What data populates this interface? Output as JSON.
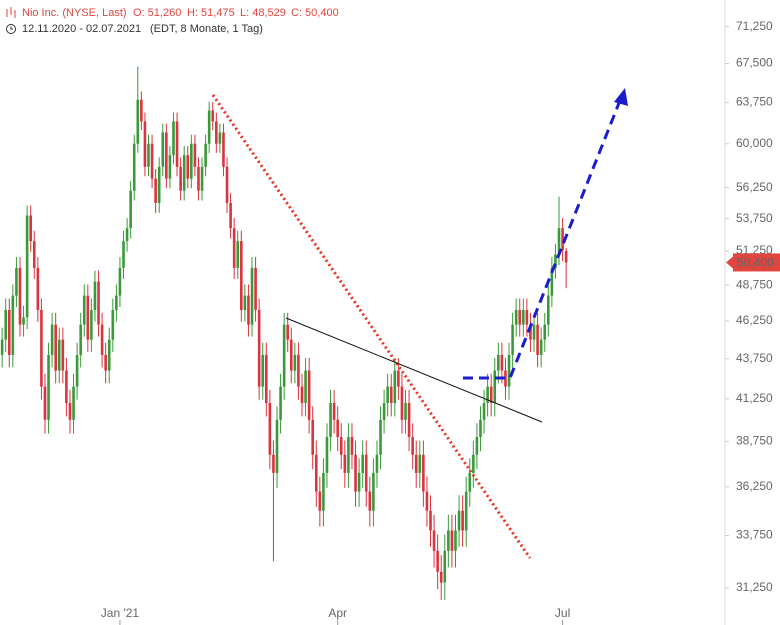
{
  "chart_data": {
    "type": "candlestick",
    "header": {
      "title": "Nio Inc. (NYSE, Last)",
      "open": "O: 51,260",
      "high": "H: 51,475",
      "low": "L: 48,529",
      "close": "C: 50,400"
    },
    "subtitle": {
      "range": "12.11.2020 - 02.07.2021",
      "info": "(EDT, 8 Monate, 1 Tag)"
    },
    "log_scale": true,
    "up_color": "#3a9a3a",
    "down_color": "#d9343f",
    "last": {
      "value": 50.4,
      "label": "50,400"
    },
    "ylim": [
      30.7,
      74.1
    ],
    "yticks": [
      {
        "value": 31.25,
        "label": "31,250"
      },
      {
        "value": 33.75,
        "label": "33,750"
      },
      {
        "value": 36.25,
        "label": "36,250"
      },
      {
        "value": 38.75,
        "label": "38,750"
      },
      {
        "value": 41.25,
        "label": "41,250"
      },
      {
        "value": 43.75,
        "label": "43,750"
      },
      {
        "value": 46.25,
        "label": "46,250"
      },
      {
        "value": 48.75,
        "label": "48,750"
      },
      {
        "value": 51.25,
        "label": "51,250"
      },
      {
        "value": 53.75,
        "label": "53,750"
      },
      {
        "value": 56.25,
        "label": "56,250"
      },
      {
        "value": 60,
        "label": "60,000"
      },
      {
        "value": 63.75,
        "label": "63,750"
      },
      {
        "value": 67.5,
        "label": "67,500"
      },
      {
        "value": 71.25,
        "label": "71,250"
      }
    ],
    "xlim": [
      -0.6,
      202.5
    ],
    "xticks": [
      {
        "value": 33,
        "label": "Jan '21"
      },
      {
        "value": 94,
        "label": "Apr"
      },
      {
        "value": 157,
        "label": "Jul"
      }
    ],
    "ohlc": [
      [
        44,
        45.8,
        43.2,
        45
      ],
      [
        45,
        47.8,
        44.2,
        47
      ],
      [
        47,
        47.8,
        43.2,
        44
      ],
      [
        44,
        48.8,
        43.2,
        48
      ],
      [
        48,
        50.8,
        47.2,
        50
      ],
      [
        50,
        50.8,
        45.2,
        46
      ],
      [
        46,
        47.3,
        45.2,
        46.5
      ],
      [
        46.5,
        54.8,
        45.7,
        54
      ],
      [
        54,
        54.8,
        51.2,
        52
      ],
      [
        52,
        52.8,
        49.2,
        50
      ],
      [
        50,
        50.8,
        46.2,
        47
      ],
      [
        47,
        47.8,
        41.2,
        42
      ],
      [
        42,
        42.8,
        39.2,
        40
      ],
      [
        40,
        44.8,
        39.2,
        44
      ],
      [
        44,
        46.8,
        43.2,
        46
      ],
      [
        46,
        46.8,
        42.2,
        43
      ],
      [
        43,
        45.8,
        42.2,
        45
      ],
      [
        45,
        45.8,
        42.2,
        43
      ],
      [
        43,
        43.8,
        40.2,
        41
      ],
      [
        41,
        41.8,
        39.2,
        40
      ],
      [
        40,
        42.8,
        39.2,
        42
      ],
      [
        42,
        44.8,
        41.2,
        44
      ],
      [
        44,
        46.8,
        43.2,
        46
      ],
      [
        46,
        48.8,
        45.2,
        48
      ],
      [
        48,
        48.8,
        44.2,
        45
      ],
      [
        45,
        47.8,
        44.2,
        47
      ],
      [
        47,
        49.8,
        46.2,
        49
      ],
      [
        49,
        49.8,
        45.2,
        46
      ],
      [
        46,
        46.8,
        43.2,
        44
      ],
      [
        44,
        44.8,
        42.2,
        43
      ],
      [
        43,
        45.8,
        42.2,
        45
      ],
      [
        45,
        47.8,
        44.2,
        47
      ],
      [
        47,
        48.8,
        46.2,
        48
      ],
      [
        48,
        50.8,
        47.2,
        50
      ],
      [
        50,
        52.8,
        49.2,
        52
      ],
      [
        52,
        53.8,
        51.2,
        53
      ],
      [
        53,
        56.8,
        52.2,
        56
      ],
      [
        56,
        60.8,
        55.2,
        60
      ],
      [
        60,
        67.2,
        59.2,
        64
      ],
      [
        64,
        64.8,
        61.2,
        62
      ],
      [
        62,
        62.8,
        57.2,
        58
      ],
      [
        58,
        60.8,
        57.2,
        60
      ],
      [
        60,
        60.8,
        56.2,
        57
      ],
      [
        57,
        57.8,
        54.2,
        55
      ],
      [
        55,
        58.8,
        54.2,
        58
      ],
      [
        58,
        61.8,
        57.2,
        61
      ],
      [
        61,
        61.8,
        56.2,
        57
      ],
      [
        57,
        59.8,
        56.2,
        59
      ],
      [
        59,
        62.8,
        58.2,
        62
      ],
      [
        62,
        62.8,
        57.2,
        58
      ],
      [
        58,
        58.8,
        55.2,
        56
      ],
      [
        56,
        59.8,
        55.2,
        59
      ],
      [
        59,
        59.8,
        56.2,
        57
      ],
      [
        57,
        60.8,
        56.2,
        60
      ],
      [
        60,
        60.8,
        57.2,
        58
      ],
      [
        58,
        58.8,
        55.2,
        56
      ],
      [
        56,
        58.8,
        55.2,
        58
      ],
      [
        58,
        60.8,
        57.2,
        60
      ],
      [
        60,
        63.8,
        59.2,
        63
      ],
      [
        63,
        63.8,
        61.2,
        62
      ],
      [
        62,
        62.8,
        59.2,
        60
      ],
      [
        60,
        61.8,
        59.2,
        61
      ],
      [
        61,
        61.8,
        57.2,
        58
      ],
      [
        58,
        58.8,
        54.2,
        55
      ],
      [
        55,
        55.8,
        52.2,
        53
      ],
      [
        53,
        53.8,
        49.2,
        50
      ],
      [
        50,
        52.8,
        49.2,
        52
      ],
      [
        52,
        52.8,
        46.2,
        47
      ],
      [
        47,
        48.8,
        46.2,
        48
      ],
      [
        48,
        48.8,
        45.2,
        46
      ],
      [
        46,
        50.8,
        45.2,
        50
      ],
      [
        50,
        50.8,
        46.2,
        47
      ],
      [
        47,
        47.8,
        41.2,
        42
      ],
      [
        42,
        44.8,
        41.2,
        44
      ],
      [
        44,
        44.8,
        40.2,
        41
      ],
      [
        41,
        41.8,
        37.2,
        38
      ],
      [
        38,
        38.8,
        32.5,
        37
      ],
      [
        37,
        40.8,
        36.2,
        40
      ],
      [
        40,
        42.8,
        39.2,
        42
      ],
      [
        42,
        46.8,
        41.2,
        46
      ],
      [
        46,
        46.8,
        44.2,
        45
      ],
      [
        45,
        45.8,
        42.2,
        43
      ],
      [
        43,
        44.8,
        42.2,
        44
      ],
      [
        44,
        44.8,
        41.2,
        42
      ],
      [
        42,
        42.8,
        40.2,
        41
      ],
      [
        41,
        43.8,
        40.2,
        43
      ],
      [
        43,
        43.8,
        39.2,
        40
      ],
      [
        40,
        40.8,
        37.2,
        38
      ],
      [
        38,
        38.8,
        35.2,
        36
      ],
      [
        36,
        36.8,
        34.2,
        35
      ],
      [
        35,
        37.8,
        34.2,
        37
      ],
      [
        37,
        39.8,
        36.2,
        39
      ],
      [
        39,
        41.8,
        38.2,
        41
      ],
      [
        41,
        41.8,
        39.2,
        40
      ],
      [
        40,
        40.8,
        38.2,
        39
      ],
      [
        39,
        39.8,
        37.2,
        38
      ],
      [
        38,
        38.8,
        36.2,
        37
      ],
      [
        37,
        39.8,
        36.2,
        39
      ],
      [
        39,
        39.8,
        37.2,
        38
      ],
      [
        38,
        38.8,
        35.2,
        36
      ],
      [
        36,
        37.8,
        35.2,
        37
      ],
      [
        37,
        38.8,
        36.2,
        38
      ],
      [
        38,
        38.8,
        35.2,
        36
      ],
      [
        36,
        36.8,
        34.2,
        35
      ],
      [
        35,
        37.8,
        34.2,
        37
      ],
      [
        37,
        38.8,
        36.2,
        38
      ],
      [
        38,
        40.8,
        37.2,
        40
      ],
      [
        40,
        41.8,
        39.2,
        41
      ],
      [
        41,
        42.8,
        40.2,
        42
      ],
      [
        42,
        42.8,
        40.2,
        41
      ],
      [
        41,
        43.8,
        40.2,
        43
      ],
      [
        43,
        43.8,
        41.2,
        42
      ],
      [
        42,
        42.8,
        39.2,
        40
      ],
      [
        40,
        41.8,
        39.2,
        41
      ],
      [
        41,
        41.8,
        38.2,
        39
      ],
      [
        39,
        39.8,
        37.2,
        38
      ],
      [
        38,
        38.8,
        36.2,
        37
      ],
      [
        37,
        38.8,
        36.2,
        38
      ],
      [
        38,
        38.8,
        35.2,
        36
      ],
      [
        36,
        36.8,
        34.2,
        35
      ],
      [
        35,
        35.8,
        33.2,
        34
      ],
      [
        34,
        34.8,
        32.2,
        33
      ],
      [
        33,
        33.8,
        31.2,
        32
      ],
      [
        32,
        32.8,
        30.7,
        31.5
      ],
      [
        31.5,
        33.8,
        30.7,
        33
      ],
      [
        33,
        34.8,
        32.2,
        34
      ],
      [
        34,
        34.8,
        32.2,
        33
      ],
      [
        33,
        34.8,
        32.2,
        34
      ],
      [
        34,
        35.8,
        33.2,
        35
      ],
      [
        35,
        35.8,
        33.2,
        34
      ],
      [
        34,
        36.8,
        33.2,
        36
      ],
      [
        36,
        37.8,
        35.2,
        37
      ],
      [
        37,
        38.8,
        36.2,
        38
      ],
      [
        38,
        39.8,
        37.2,
        39
      ],
      [
        39,
        40.8,
        38.2,
        40
      ],
      [
        40,
        41.8,
        39.2,
        41
      ],
      [
        41,
        42.8,
        40.2,
        42
      ],
      [
        42,
        42.8,
        40.2,
        41
      ],
      [
        41,
        43.8,
        40.2,
        43
      ],
      [
        43,
        44.8,
        42.2,
        44
      ],
      [
        44,
        44.8,
        42.2,
        43
      ],
      [
        43,
        43.8,
        41.2,
        42
      ],
      [
        42,
        44.8,
        41.2,
        44
      ],
      [
        44,
        46.8,
        43.2,
        46
      ],
      [
        46,
        47.8,
        45.2,
        47
      ],
      [
        47,
        47.8,
        45.2,
        46
      ],
      [
        46,
        47.8,
        45.2,
        47
      ],
      [
        47,
        47.8,
        45.2,
        46
      ],
      [
        46,
        46.8,
        44.2,
        45
      ],
      [
        45,
        46.8,
        44.2,
        46
      ],
      [
        46,
        46.8,
        43.2,
        44
      ],
      [
        44,
        45.8,
        43.2,
        45
      ],
      [
        45,
        46.8,
        44.2,
        46
      ],
      [
        46,
        48.8,
        45.2,
        48
      ],
      [
        48,
        50.8,
        47.2,
        50
      ],
      [
        50,
        51.8,
        49.2,
        51
      ],
      [
        51,
        55.5,
        50.2,
        53
      ],
      [
        53,
        53.8,
        50.5,
        51.3
      ],
      [
        51.26,
        51.475,
        48.529,
        50.4
      ]
    ]
  }
}
